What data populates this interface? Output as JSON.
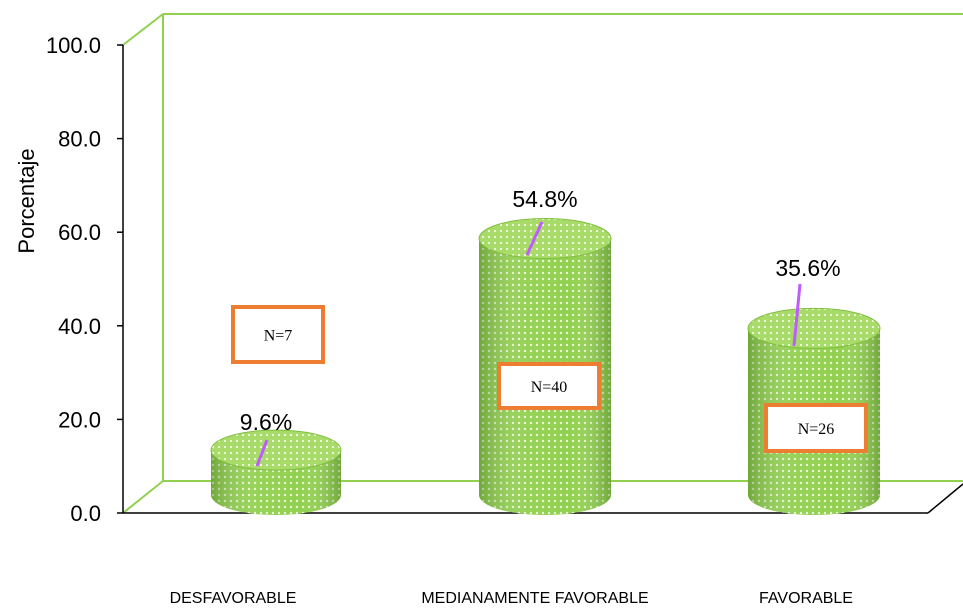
{
  "chart_data": {
    "type": "bar",
    "title": "",
    "xlabel": "",
    "ylabel": "Porcentaje",
    "ylim": [
      0,
      100
    ],
    "yticks": [
      "0.0",
      "20.0",
      "40.0",
      "60.0",
      "80.0",
      "100.0"
    ],
    "categories": [
      "DESFAVORABLE",
      "MEDIANAMENTE FAVORABLE",
      "FAVORABLE"
    ],
    "values": [
      9.6,
      54.8,
      35.6
    ],
    "value_labels": [
      "9.6%",
      "54.8%",
      "35.6%"
    ],
    "count_labels": [
      "N=7",
      "N=40",
      "N=26"
    ],
    "colors": {
      "bar": "#92d050",
      "bar_dark": "#6aa52a",
      "top": "#b5e07a",
      "frame": "#92d050",
      "count_box_border": "#ed7d31",
      "leader_line": "#c05cff"
    }
  }
}
